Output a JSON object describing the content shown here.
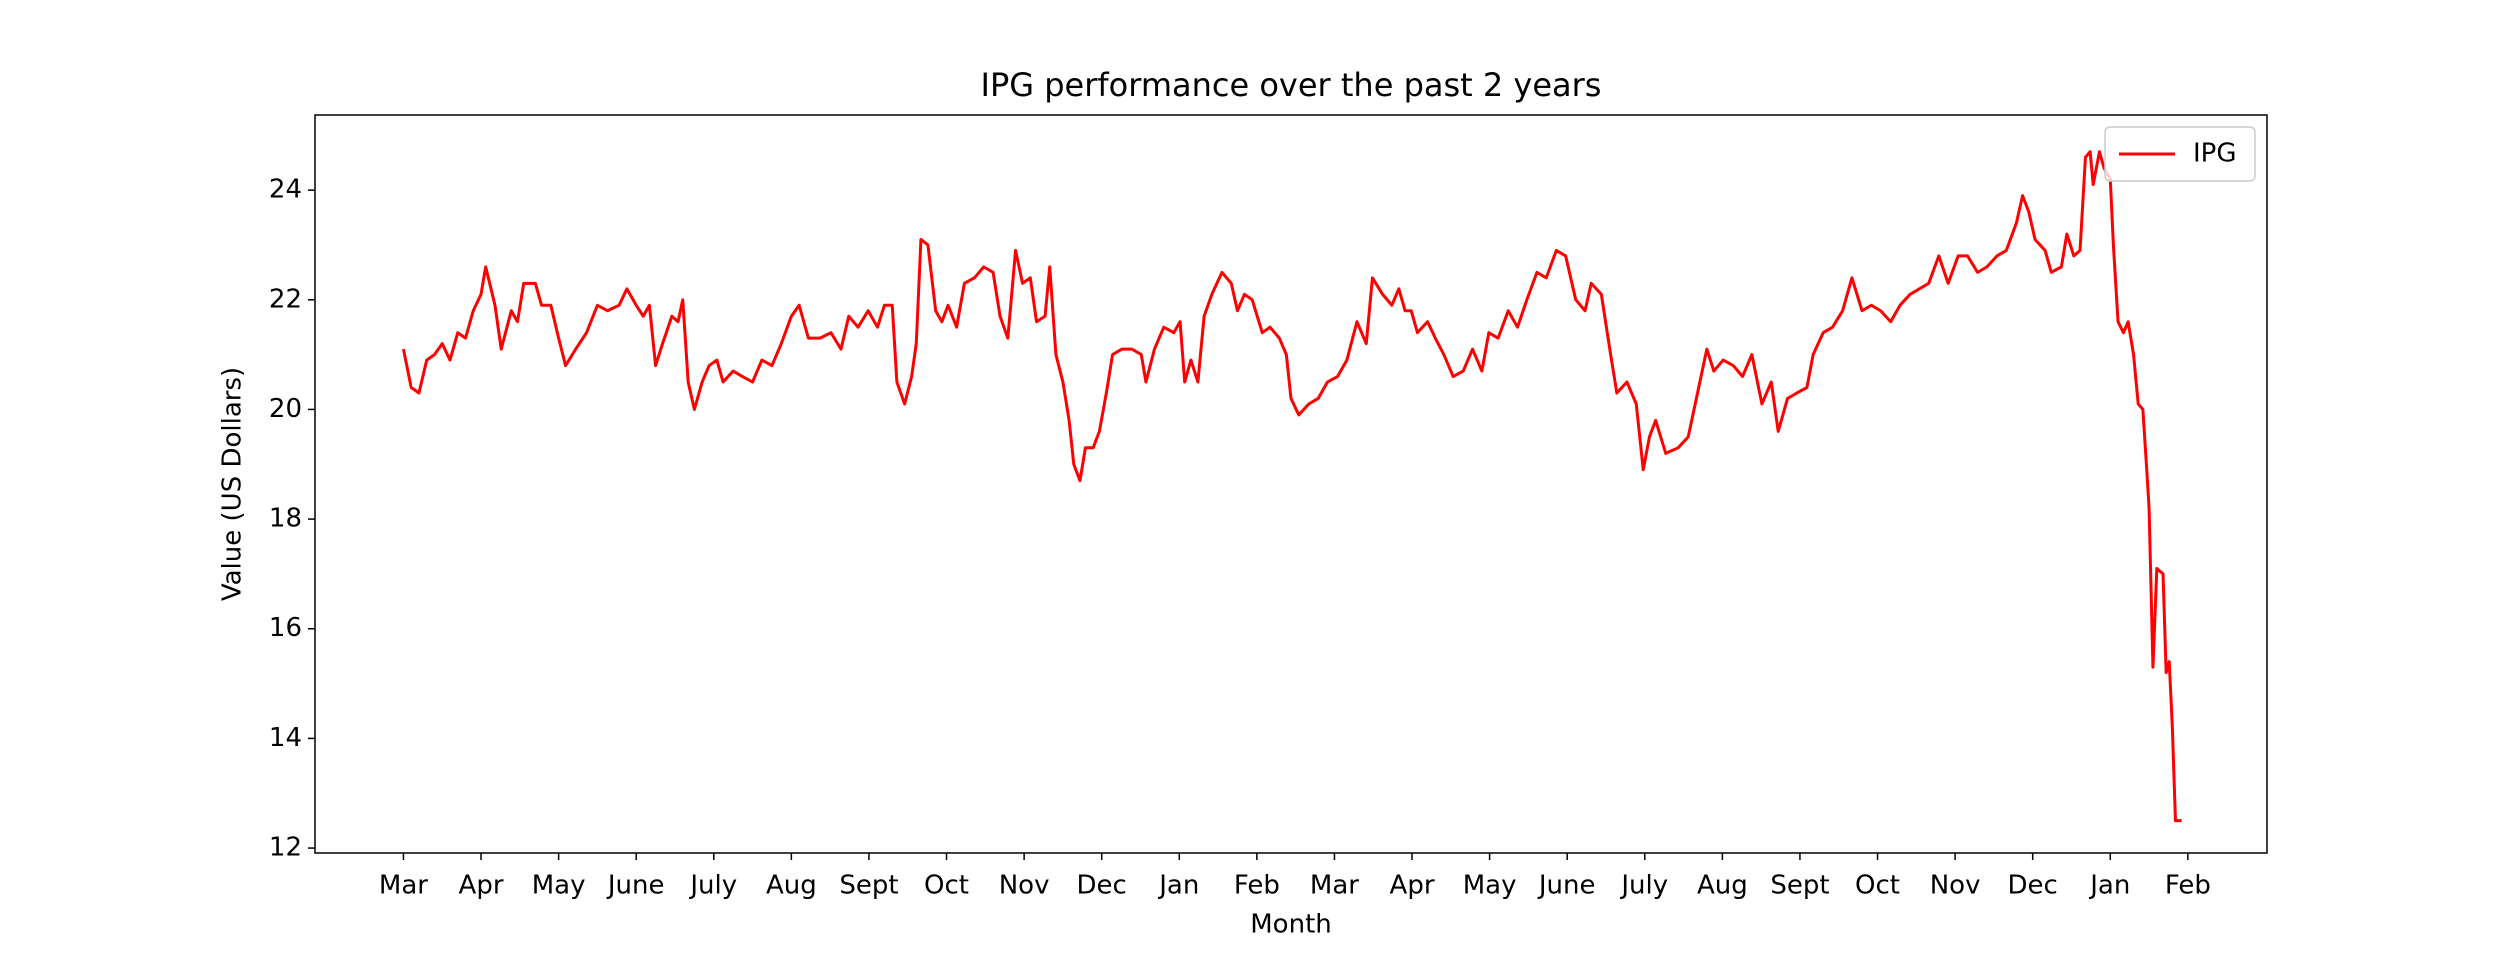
{
  "chart_data": {
    "type": "line",
    "title": "IPG performance over the past 2 years",
    "x_label": "Month",
    "y_label": "Value (US Dollars)",
    "x": [
      0,
      0.1,
      0.2,
      0.3,
      0.4,
      0.5,
      0.6,
      0.7,
      0.8,
      0.9,
      1.0,
      1.06,
      1.18,
      1.26,
      1.39,
      1.47,
      1.55,
      1.7,
      1.78,
      1.9,
      2.0,
      2.09,
      2.22,
      2.36,
      2.5,
      2.63,
      2.78,
      2.88,
      3.0,
      3.09,
      3.17,
      3.25,
      3.34,
      3.46,
      3.54,
      3.6,
      3.67,
      3.75,
      3.85,
      3.94,
      4.04,
      4.12,
      4.25,
      4.37,
      4.5,
      4.62,
      4.75,
      4.87,
      5.0,
      5.1,
      5.22,
      5.37,
      5.51,
      5.64,
      5.74,
      5.86,
      5.99,
      6.11,
      6.2,
      6.3,
      6.36,
      6.46,
      6.55,
      6.61,
      6.67,
      6.76,
      6.86,
      6.94,
      7.02,
      7.13,
      7.23,
      7.36,
      7.48,
      7.6,
      7.69,
      7.79,
      7.89,
      7.98,
      8.08,
      8.16,
      8.27,
      8.33,
      8.41,
      8.5,
      8.58,
      8.64,
      8.72,
      8.79,
      8.89,
      8.97,
      9.06,
      9.14,
      9.26,
      9.39,
      9.51,
      9.57,
      9.68,
      9.8,
      9.93,
      10.01,
      10.07,
      10.15,
      10.24,
      10.32,
      10.42,
      10.55,
      10.67,
      10.75,
      10.84,
      10.94,
      11.07,
      11.17,
      11.29,
      11.38,
      11.44,
      11.54,
      11.67,
      11.79,
      11.91,
      12.04,
      12.16,
      12.29,
      12.41,
      12.49,
      12.62,
      12.74,
      12.83,
      12.91,
      12.99,
      13.07,
      13.2,
      13.3,
      13.41,
      13.53,
      13.66,
      13.78,
      13.9,
      13.99,
      14.11,
      14.24,
      14.36,
      14.48,
      14.61,
      14.73,
      14.86,
      14.98,
      15.11,
      15.23,
      15.31,
      15.44,
      15.56,
      15.64,
      15.77,
      15.89,
      15.98,
      16.06,
      16.14,
      16.27,
      16.43,
      16.56,
      16.68,
      16.8,
      16.89,
      17.01,
      17.14,
      17.26,
      17.38,
      17.51,
      17.63,
      17.72,
      17.84,
      17.96,
      18.09,
      18.17,
      18.3,
      18.42,
      18.55,
      18.67,
      18.8,
      18.92,
      19.04,
      19.17,
      19.29,
      19.42,
      19.54,
      19.66,
      19.79,
      19.91,
      20.04,
      20.16,
      20.29,
      20.41,
      20.54,
      20.66,
      20.79,
      20.87,
      20.95,
      21.03,
      21.16,
      21.24,
      21.37,
      21.44,
      21.53,
      21.61,
      21.68,
      21.74,
      21.78,
      21.86,
      21.92,
      22.0,
      22.04,
      22.1,
      22.17,
      22.23,
      22.3,
      22.36,
      22.42,
      22.47,
      22.5,
      22.55,
      22.6,
      22.68,
      22.72,
      22.76,
      22.8,
      22.84,
      22.92
    ],
    "series": [
      {
        "name": "IPG",
        "color": "#ff0000",
        "values": [
          21.1,
          20.4,
          20.3,
          20.9,
          21.0,
          21.2,
          20.9,
          21.4,
          21.3,
          21.8,
          22.1,
          22.6,
          21.9,
          21.1,
          21.8,
          21.6,
          22.3,
          22.3,
          21.9,
          21.9,
          21.3,
          20.8,
          21.1,
          21.4,
          21.9,
          21.8,
          21.9,
          22.2,
          21.9,
          21.7,
          21.9,
          20.8,
          21.2,
          21.7,
          21.6,
          22.0,
          20.5,
          20.0,
          20.5,
          20.8,
          20.9,
          20.5,
          20.7,
          20.6,
          20.5,
          20.9,
          20.8,
          21.2,
          21.7,
          21.9,
          21.3,
          21.3,
          21.4,
          21.1,
          21.7,
          21.5,
          21.8,
          21.5,
          21.9,
          21.9,
          20.5,
          20.1,
          20.6,
          21.2,
          23.1,
          23.0,
          21.8,
          21.6,
          21.9,
          21.5,
          22.3,
          22.4,
          22.6,
          22.5,
          21.7,
          21.3,
          22.9,
          22.3,
          22.4,
          21.6,
          21.7,
          22.6,
          21.0,
          20.5,
          19.8,
          19.0,
          18.7,
          19.3,
          19.3,
          19.6,
          20.3,
          21.0,
          21.1,
          21.1,
          21.0,
          20.5,
          21.1,
          21.5,
          21.4,
          21.6,
          20.5,
          20.9,
          20.5,
          21.7,
          22.1,
          22.5,
          22.3,
          21.8,
          22.1,
          22.0,
          21.4,
          21.5,
          21.3,
          21.0,
          20.2,
          19.9,
          20.1,
          20.2,
          20.5,
          20.6,
          20.9,
          21.6,
          21.2,
          22.4,
          22.1,
          21.9,
          22.2,
          21.8,
          21.8,
          21.4,
          21.6,
          21.3,
          21.0,
          20.6,
          20.7,
          21.1,
          20.7,
          21.4,
          21.3,
          21.8,
          21.5,
          22.0,
          22.5,
          22.4,
          22.9,
          22.8,
          22.0,
          21.8,
          22.3,
          22.1,
          21.0,
          20.3,
          20.5,
          20.1,
          18.9,
          19.5,
          19.8,
          19.2,
          19.3,
          19.5,
          20.3,
          21.1,
          20.7,
          20.9,
          20.8,
          20.6,
          21.0,
          20.1,
          20.5,
          19.6,
          20.2,
          20.3,
          20.4,
          21.0,
          21.4,
          21.5,
          21.8,
          22.4,
          21.8,
          21.9,
          21.8,
          21.6,
          21.9,
          22.1,
          22.2,
          22.3,
          22.8,
          22.3,
          22.8,
          22.8,
          22.5,
          22.6,
          22.8,
          22.9,
          23.4,
          23.9,
          23.6,
          23.1,
          22.9,
          22.5,
          22.6,
          23.2,
          22.8,
          22.9,
          24.6,
          24.7,
          24.1,
          24.7,
          24.4,
          24.2,
          23.0,
          21.6,
          21.4,
          21.6,
          21.0,
          20.1,
          20.0,
          18.9,
          18.2,
          15.3,
          17.1,
          17.0,
          15.2,
          15.4,
          14.2,
          12.5,
          12.5
        ]
      }
    ],
    "xlim": [
      -1.14,
      24.02
    ],
    "ylim": [
      11.91,
      25.37
    ],
    "xticks": [
      {
        "value": 0,
        "label": "Mar"
      },
      {
        "value": 1,
        "label": "Apr"
      },
      {
        "value": 2,
        "label": "May"
      },
      {
        "value": 3,
        "label": "June"
      },
      {
        "value": 4,
        "label": "July"
      },
      {
        "value": 5,
        "label": "Aug"
      },
      {
        "value": 6,
        "label": "Sept"
      },
      {
        "value": 7,
        "label": "Oct"
      },
      {
        "value": 8,
        "label": "Nov"
      },
      {
        "value": 9,
        "label": "Dec"
      },
      {
        "value": 10,
        "label": "Jan"
      },
      {
        "value": 11,
        "label": "Feb"
      },
      {
        "value": 12,
        "label": "Mar"
      },
      {
        "value": 13,
        "label": "Apr"
      },
      {
        "value": 14,
        "label": "May"
      },
      {
        "value": 15,
        "label": "June"
      },
      {
        "value": 16,
        "label": "July"
      },
      {
        "value": 17,
        "label": "Aug"
      },
      {
        "value": 18,
        "label": "Sept"
      },
      {
        "value": 19,
        "label": "Oct"
      },
      {
        "value": 20,
        "label": "Nov"
      },
      {
        "value": 21,
        "label": "Dec"
      },
      {
        "value": 22,
        "label": "Jan"
      },
      {
        "value": 23,
        "label": "Feb"
      }
    ],
    "yticks": [
      12,
      14,
      16,
      18,
      20,
      22,
      24
    ],
    "grid": false,
    "legend": "upper right"
  }
}
